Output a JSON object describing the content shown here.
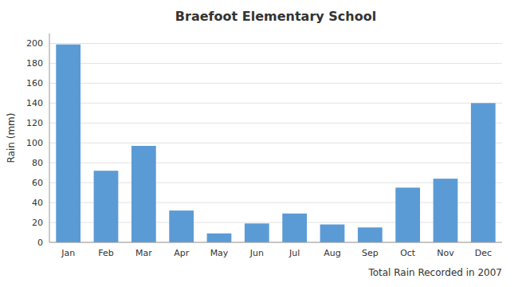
{
  "chart_data": {
    "type": "bar",
    "title": "Braefoot Elementary School",
    "xlabel": "Total Rain Recorded in 2007",
    "ylabel": "Rain (mm)",
    "categories": [
      "Jan",
      "Feb",
      "Mar",
      "Apr",
      "May",
      "Jun",
      "Jul",
      "Aug",
      "Sep",
      "Oct",
      "Nov",
      "Dec"
    ],
    "values": [
      199,
      72,
      97,
      32,
      9,
      19,
      29,
      18,
      15,
      55,
      64,
      140
    ],
    "color": "#5B9BD5",
    "ylim": [
      0,
      210
    ],
    "yticks": [
      0,
      20,
      40,
      60,
      80,
      100,
      120,
      140,
      160,
      180,
      200
    ],
    "grid": true
  }
}
